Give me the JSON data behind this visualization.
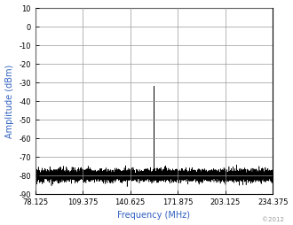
{
  "xlim": [
    78.125,
    234.375
  ],
  "ylim": [
    -90,
    10
  ],
  "xticks": [
    78.125,
    109.375,
    140.625,
    171.875,
    203.125,
    234.375
  ],
  "yticks": [
    -90,
    -80,
    -70,
    -60,
    -50,
    -40,
    -30,
    -20,
    -10,
    0,
    10
  ],
  "xlabel": "Frequency (MHz)",
  "ylabel": "Amplitude (dBm)",
  "noise_floor": -80,
  "noise_std": 1.5,
  "main_spike_freq": 156.25,
  "main_spike_amp": -32,
  "secondary_spike_freq": 96.875,
  "secondary_spike_amp": -75,
  "line_color": "#000000",
  "bg_color": "#ffffff",
  "grid_color": "#999999",
  "copyright_text": "©2012",
  "copyright_color": "#999999",
  "label_color": "#3060c0",
  "tick_color": "#000000"
}
